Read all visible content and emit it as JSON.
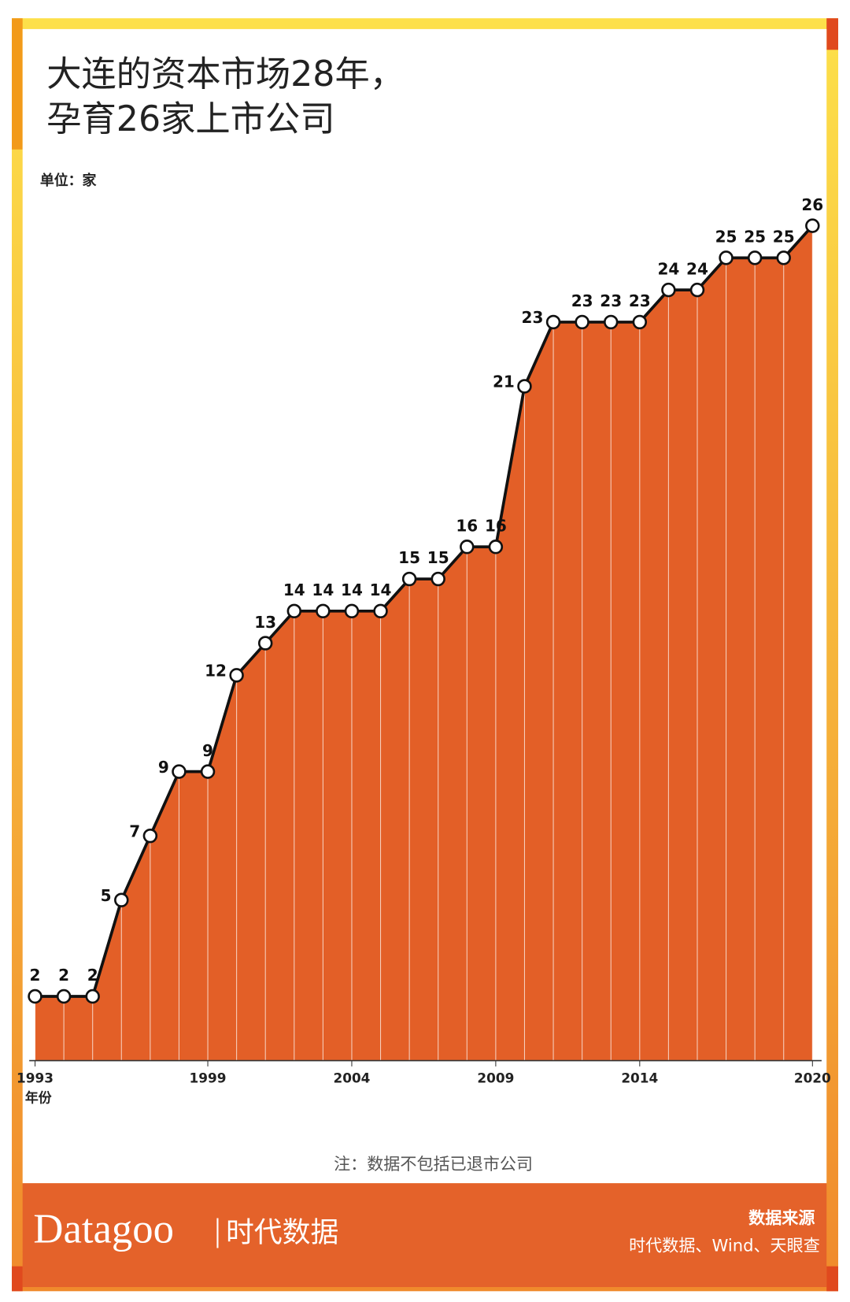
{
  "chart_data": {
    "type": "area-line",
    "title": "大连的资本市场28年，",
    "subtitle": "孕育26家上市公司",
    "unit": "单位：家",
    "x_label": "年份",
    "note": "注：数据不包括已退市公司",
    "brand": "Datagoo",
    "brand_cn": "时代数据",
    "source_title": "数据来源",
    "source": "时代数据、Wind、天眼查",
    "x": [
      1993,
      1994,
      1995,
      1996,
      1997,
      1998,
      1999,
      2000,
      2001,
      2002,
      2003,
      2004,
      2005,
      2006,
      2007,
      2008,
      2009,
      2010,
      2011,
      2012,
      2013,
      2014,
      2015,
      2016,
      2017,
      2018,
      2019,
      2020
    ],
    "values": [
      2,
      2,
      2,
      5,
      7,
      9,
      9,
      12,
      13,
      14,
      14,
      14,
      14,
      15,
      15,
      16,
      16,
      21,
      23,
      23,
      23,
      23,
      24,
      24,
      25,
      25,
      25,
      26
    ],
    "xlim": [
      1993,
      2020
    ],
    "xticks": [
      1993,
      1999,
      2004,
      2009,
      2014,
      2020
    ],
    "color": "#e35f27"
  }
}
